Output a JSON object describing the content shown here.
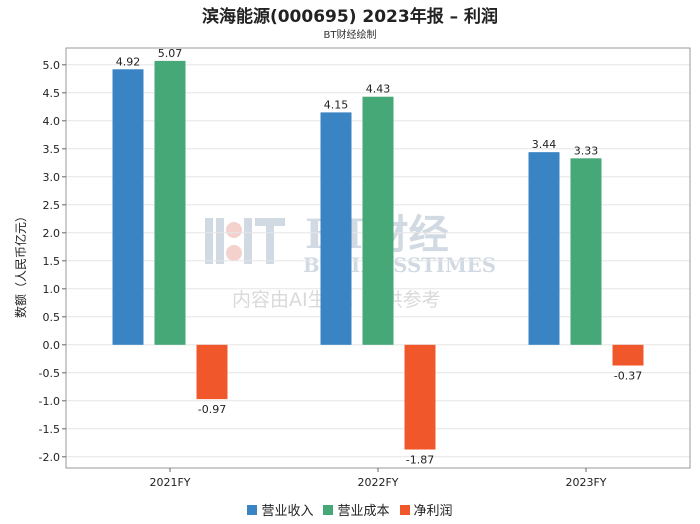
{
  "chart_data": {
    "type": "bar",
    "title": "滨海能源(000695) 2023年报 – 利润",
    "subtitle": "BT财经绘制",
    "ylabel": "数额（人民币亿元）",
    "xlabel": "",
    "categories": [
      "2021FY",
      "2022FY",
      "2023FY"
    ],
    "ylim": [
      -2.2,
      5.3
    ],
    "yticks": [
      5.0,
      4.5,
      4.0,
      3.5,
      3.0,
      2.5,
      2.0,
      1.5,
      1.0,
      0.5,
      0.0,
      -0.5,
      -1.0,
      -1.5,
      -2.0
    ],
    "ytick_labels": [
      "5.0",
      "4.5",
      "4.0",
      "3.5",
      "3.0",
      "2.5",
      "2.0",
      "1.5",
      "1.0",
      "0.5",
      "0.0",
      "-0.5",
      "-1.0",
      "-1.5",
      "-2.0"
    ],
    "grid": true,
    "legend_position": "bottom",
    "series": [
      {
        "name": "营业收入",
        "color": "#3a84c4",
        "values": [
          4.92,
          4.15,
          3.44
        ],
        "labels": [
          "4.92",
          "4.15",
          "3.44"
        ]
      },
      {
        "name": "营业成本",
        "color": "#47a877",
        "values": [
          5.07,
          4.43,
          3.33
        ],
        "labels": [
          "5.07",
          "4.43",
          "3.33"
        ]
      },
      {
        "name": "净利润",
        "color": "#f0582b",
        "values": [
          -0.97,
          -1.87,
          -0.37
        ],
        "labels": [
          "-0.97",
          "-1.87",
          "-0.37"
        ]
      }
    ]
  },
  "watermark": {
    "brand": "BT财经",
    "brand_en": "BUSINESSTIMES",
    "note": "内容由AI生成，仅供参考"
  }
}
